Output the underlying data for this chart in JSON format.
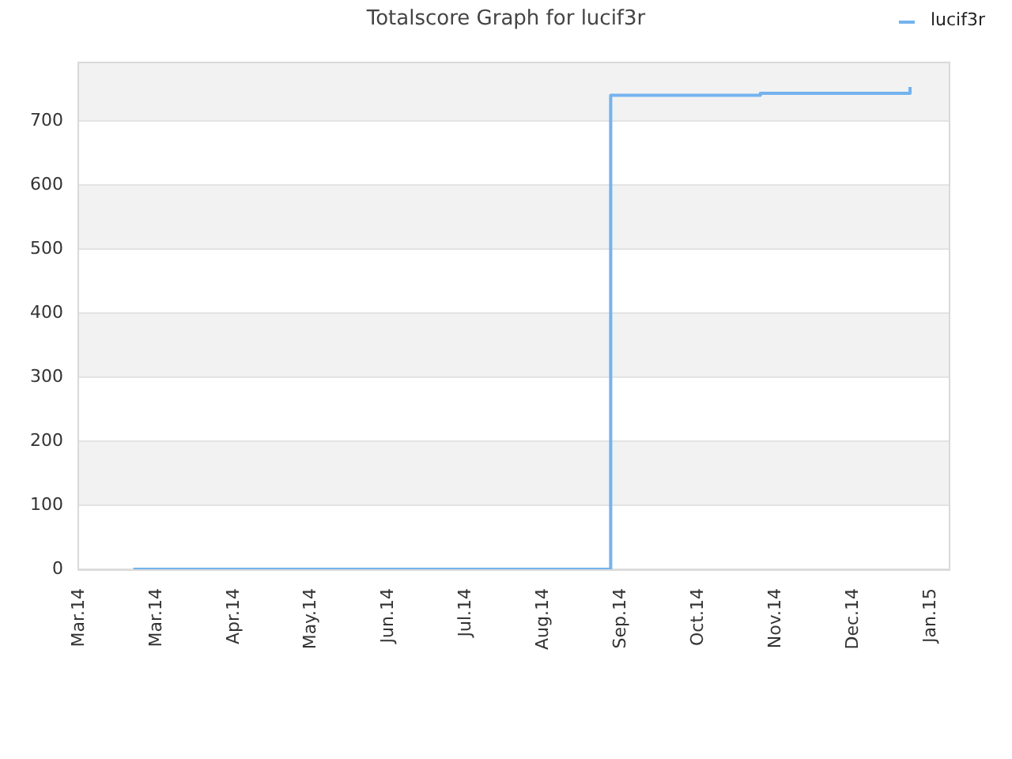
{
  "chart_data": {
    "type": "step",
    "title": "Totalscore Graph for lucif3r",
    "x": [
      "2014-03-22",
      "2014-09-23",
      "2014-11-20",
      "2015-01-17"
    ],
    "series": [
      {
        "name": "lucif3r",
        "color": "#74b3ee",
        "values": [
          0,
          740,
          743,
          753
        ]
      }
    ],
    "xlim": [
      "2014-03-01",
      "2015-02-01"
    ],
    "xticks": [
      {
        "value": "2014-03-01",
        "label": "Mar.14"
      },
      {
        "value": "2014-03-31",
        "label": "Mar.14"
      },
      {
        "value": "2014-04-30",
        "label": "Apr.14"
      },
      {
        "value": "2014-05-30",
        "label": "May.14"
      },
      {
        "value": "2014-06-29",
        "label": "Jun.14"
      },
      {
        "value": "2014-07-29",
        "label": "Jul.14"
      },
      {
        "value": "2014-08-28",
        "label": "Aug.14"
      },
      {
        "value": "2014-09-27",
        "label": "Sep.14"
      },
      {
        "value": "2014-10-27",
        "label": "Oct.14"
      },
      {
        "value": "2014-11-26",
        "label": "Nov.14"
      },
      {
        "value": "2014-12-26",
        "label": "Dec.14"
      },
      {
        "value": "2015-01-25",
        "label": "Jan.15"
      }
    ],
    "ylim": [
      0,
      790
    ],
    "yticks": [
      0,
      100,
      200,
      300,
      400,
      500,
      600,
      700
    ],
    "grid": "y",
    "legend": "top right"
  }
}
